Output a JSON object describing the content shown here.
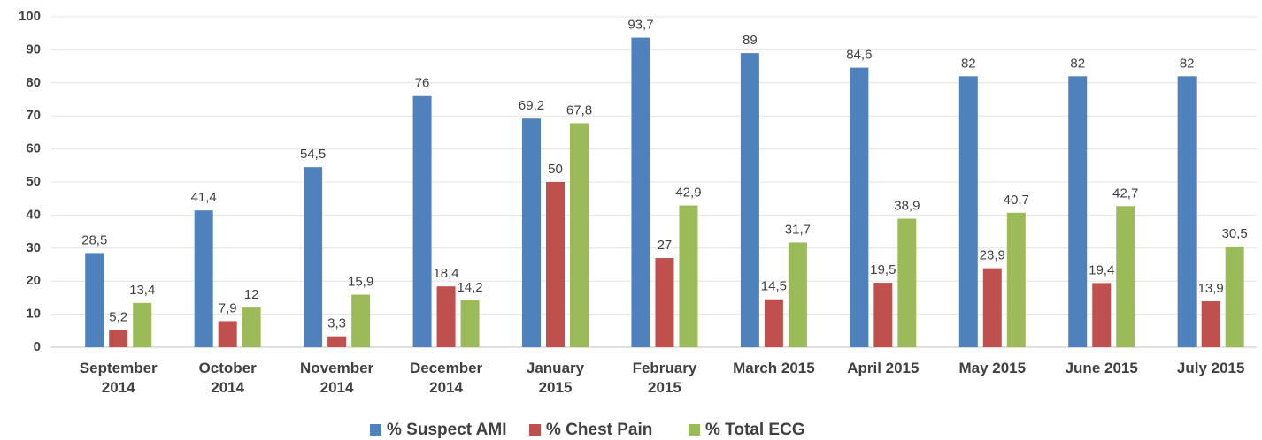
{
  "chart_data": {
    "type": "bar",
    "categories": [
      "September 2014",
      "October 2014",
      "November 2014",
      "December 2014",
      "January 2015",
      "February 2015",
      "March 2015",
      "April 2015",
      "May 2015",
      "June 2015",
      "July 2015"
    ],
    "series": [
      {
        "name": "% Suspect AMI",
        "color": "#4f81bd",
        "values": [
          28.5,
          41.4,
          54.5,
          76,
          69.2,
          93.7,
          89,
          84.6,
          82,
          82,
          82
        ],
        "value_labels": [
          "28,5",
          "41,4",
          "54,5",
          "76",
          "69,2",
          "93,7",
          "89",
          "84,6",
          "82",
          "82",
          "82"
        ]
      },
      {
        "name": "% Chest Pain",
        "color": "#c0504d",
        "values": [
          5.2,
          7.9,
          3.3,
          18.4,
          50,
          27,
          14.5,
          19.5,
          23.9,
          19.4,
          13.9
        ],
        "value_labels": [
          "5,2",
          "7,9",
          "3,3",
          "18,4",
          "50",
          "27",
          "14,5",
          "19,5",
          "23,9",
          "19,4",
          "13,9"
        ]
      },
      {
        "name": "% Total ECG",
        "color": "#9bbb59",
        "values": [
          13.4,
          12,
          15.9,
          14.2,
          67.8,
          42.9,
          31.7,
          38.9,
          40.7,
          42.7,
          30.5
        ],
        "value_labels": [
          "13,4",
          "12",
          "15,9",
          "14,2",
          "67,8",
          "42,9",
          "31,7",
          "38,9",
          "40,7",
          "42,7",
          "30,5"
        ]
      }
    ],
    "ylim": [
      0,
      100
    ],
    "yticks": [
      0,
      10,
      20,
      30,
      40,
      50,
      60,
      70,
      80,
      90,
      100
    ],
    "grid": true,
    "legend": "bottom"
  }
}
